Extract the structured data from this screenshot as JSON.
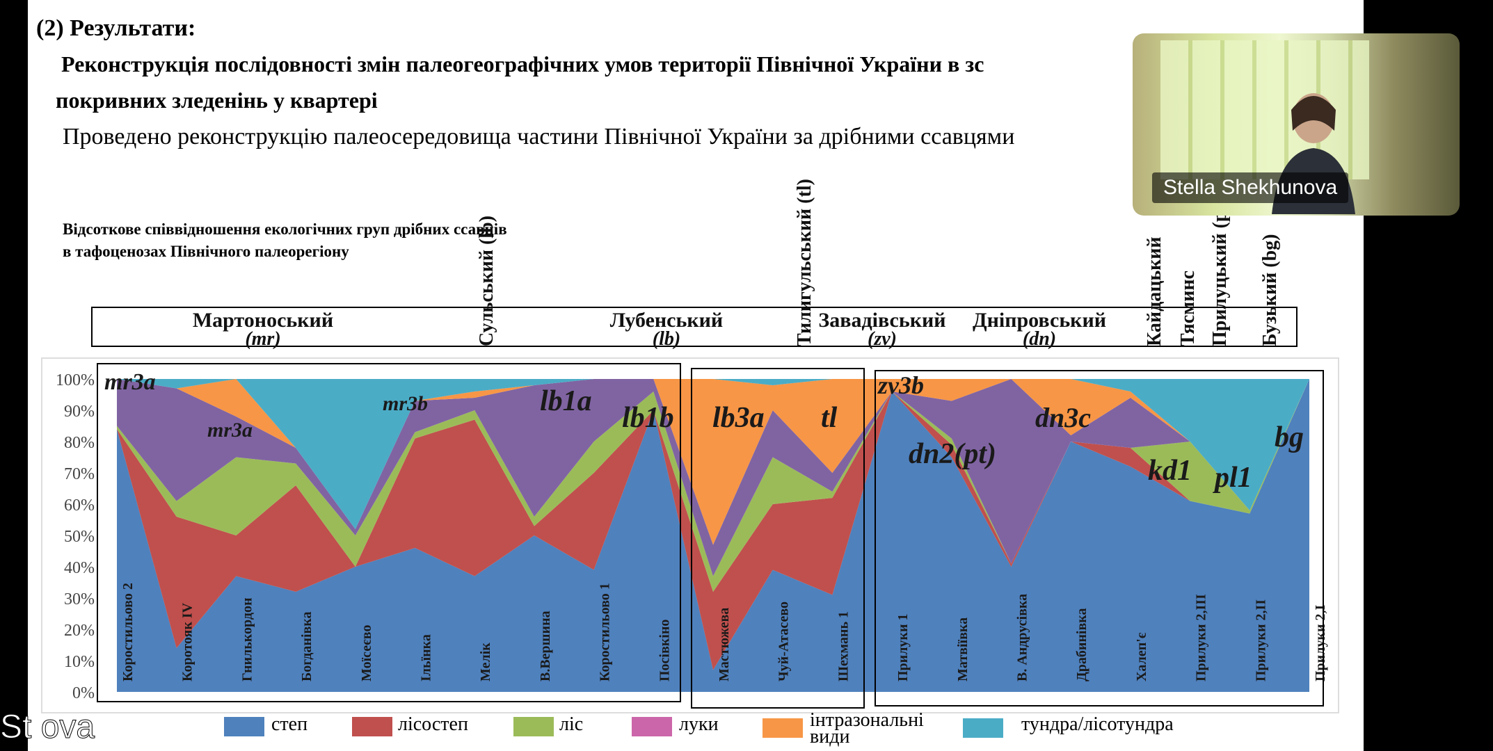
{
  "slide": {
    "section": "(2) Результати:",
    "heading_line1": "Реконструкція послідовності змін палеогеографічних умов території Північної України в зс",
    "heading_line2": "покривних зледенінь у квартері",
    "subheading": "Проведено реконструкцію палеосередовища частини Північної України за дрібними ссавцями",
    "chart_title_line1": "Відсоткове співвідношення екологічних груп дрібних ссавців",
    "chart_title_line2": "в тафоценозах Північного палеорегіону"
  },
  "video": {
    "participant_name": "Stella Shekhunova"
  },
  "overlay_name": "St          ova",
  "colors": {
    "step": "#4f81bd",
    "lisostep": "#c0504d",
    "lis": "#9bbb59",
    "luky": "#8064a2",
    "intrazonal": "#f79646",
    "tundra": "#4bacc6"
  },
  "chart_data": {
    "type": "area",
    "stacked": true,
    "title": "Відсоткове співвідношення екологічних груп дрібних ссавців в тафоценозах Північного палеорегіону",
    "ylim": [
      0,
      100
    ],
    "y_ticks": [
      "0%",
      "10%",
      "20%",
      "30%",
      "40%",
      "50%",
      "60%",
      "70%",
      "80%",
      "90%",
      "100%"
    ],
    "legend": [
      {
        "key": "step",
        "label": "степ"
      },
      {
        "key": "lisostep",
        "label": "лісостеп"
      },
      {
        "key": "lis",
        "label": "ліс"
      },
      {
        "key": "luky",
        "label": "луки"
      },
      {
        "key": "intrazonal",
        "label": "інтразональні види"
      },
      {
        "key": "tundra",
        "label": "тундра/лісотундра"
      }
    ],
    "stages": [
      {
        "name": "Мартоноський",
        "code": "mr"
      },
      {
        "name": "Сульський",
        "code": "lb"
      },
      {
        "name": "Лубенський",
        "code": "lb"
      },
      {
        "name": "Тилигульський",
        "code": "tl"
      },
      {
        "name": "Завадівський",
        "code": "zv"
      },
      {
        "name": "Дніпровський",
        "code": "dn"
      },
      {
        "name": "Кайдацький",
        "code": ""
      },
      {
        "name": "Тясминс",
        "code": ""
      },
      {
        "name": "Прилуцький",
        "code": "pl"
      },
      {
        "name": "Бузький",
        "code": "bg"
      }
    ],
    "sites": [
      {
        "name": "Коростильово 2",
        "step": 84,
        "lisostep": 0,
        "lis": 1,
        "luky": 15,
        "intrazonal": 0,
        "tundra": 0
      },
      {
        "name": "Коротояк IV",
        "step": 14,
        "lisostep": 42,
        "lis": 5,
        "luky": 36,
        "intrazonal": 0,
        "tundra": 3
      },
      {
        "name": "Гнилькордон",
        "step": 37,
        "lisostep": 13,
        "lis": 25,
        "luky": 13,
        "intrazonal": 12,
        "tundra": 0
      },
      {
        "name": "Богданівка",
        "step": 32,
        "lisostep": 34,
        "lis": 7,
        "luky": 5,
        "intrazonal": 0,
        "tundra": 22
      },
      {
        "name": "Моїсеєво",
        "step": 40,
        "lisostep": 0,
        "lis": 10,
        "luky": 2,
        "intrazonal": 0,
        "tundra": 48
      },
      {
        "name": "Ільїнка",
        "step": 46,
        "lisostep": 35,
        "lis": 2,
        "luky": 10,
        "intrazonal": 0,
        "tundra": 7
      },
      {
        "name": "Мелік",
        "step": 37,
        "lisostep": 50,
        "lis": 3,
        "luky": 4,
        "intrazonal": 2,
        "tundra": 4
      },
      {
        "name": "В.Вершина",
        "step": 50,
        "lisostep": 3,
        "lis": 3,
        "luky": 42,
        "intrazonal": 0,
        "tundra": 2
      },
      {
        "name": "Коростильово 1",
        "step": 39,
        "lisostep": 31,
        "lis": 10,
        "luky": 20,
        "intrazonal": 0,
        "tundra": 0
      },
      {
        "name": "Посівкіно",
        "step": 90,
        "lisostep": 0,
        "lis": 6,
        "luky": 4,
        "intrazonal": 0,
        "tundra": 0
      },
      {
        "name": "Мастюжева",
        "step": 7,
        "lisostep": 25,
        "lis": 5,
        "luky": 10,
        "intrazonal": 53,
        "tundra": 0
      },
      {
        "name": "Чуй-Атасево",
        "step": 39,
        "lisostep": 21,
        "lis": 15,
        "luky": 15,
        "intrazonal": 8,
        "tundra": 2
      },
      {
        "name": "Шехмань 1",
        "step": 31,
        "lisostep": 31,
        "lis": 2,
        "luky": 6,
        "intrazonal": 30,
        "tundra": 0
      },
      {
        "name": "Прилуки 1",
        "step": 96,
        "lisostep": 0,
        "lis": 0,
        "luky": 0,
        "intrazonal": 4,
        "tundra": 0
      },
      {
        "name": "Матвіївка",
        "step": 75,
        "lisostep": 4,
        "lis": 2,
        "luky": 12,
        "intrazonal": 7,
        "tundra": 0
      },
      {
        "name": "В. Андрусівка",
        "step": 40,
        "lisostep": 1,
        "lis": 0,
        "luky": 59,
        "intrazonal": 0,
        "tundra": 0
      },
      {
        "name": "Драбинівка",
        "step": 80,
        "lisostep": 0,
        "lis": 0,
        "luky": 2,
        "intrazonal": 18,
        "tundra": 0
      },
      {
        "name": "Халеп'є",
        "step": 72,
        "lisostep": 6,
        "lis": 0,
        "luky": 16,
        "intrazonal": 2,
        "tundra": 4
      },
      {
        "name": "Прилуки 2,III",
        "step": 61,
        "lisostep": 0,
        "lis": 19,
        "luky": 0,
        "intrazonal": 0,
        "tundra": 20
      },
      {
        "name": "Прилуки 2,II",
        "step": 57,
        "lisostep": 0,
        "lis": 1,
        "luky": 0,
        "intrazonal": 0,
        "tundra": 42
      },
      {
        "name": "Прилуки 2,I",
        "step": 100,
        "lisostep": 0,
        "lis": 0,
        "luky": 0,
        "intrazonal": 0,
        "tundra": 0
      }
    ],
    "annotations": [
      {
        "label": "mr3a"
      },
      {
        "label": "mr3a"
      },
      {
        "label": "mr3b"
      },
      {
        "label": "lb1a"
      },
      {
        "label": "lb1b"
      },
      {
        "label": "lb3a"
      },
      {
        "label": "tl"
      },
      {
        "label": "zv3b"
      },
      {
        "label": "dn2(pt)"
      },
      {
        "label": "dn3c"
      },
      {
        "label": "kd1"
      },
      {
        "label": "pl1"
      },
      {
        "label": "bg"
      }
    ]
  }
}
